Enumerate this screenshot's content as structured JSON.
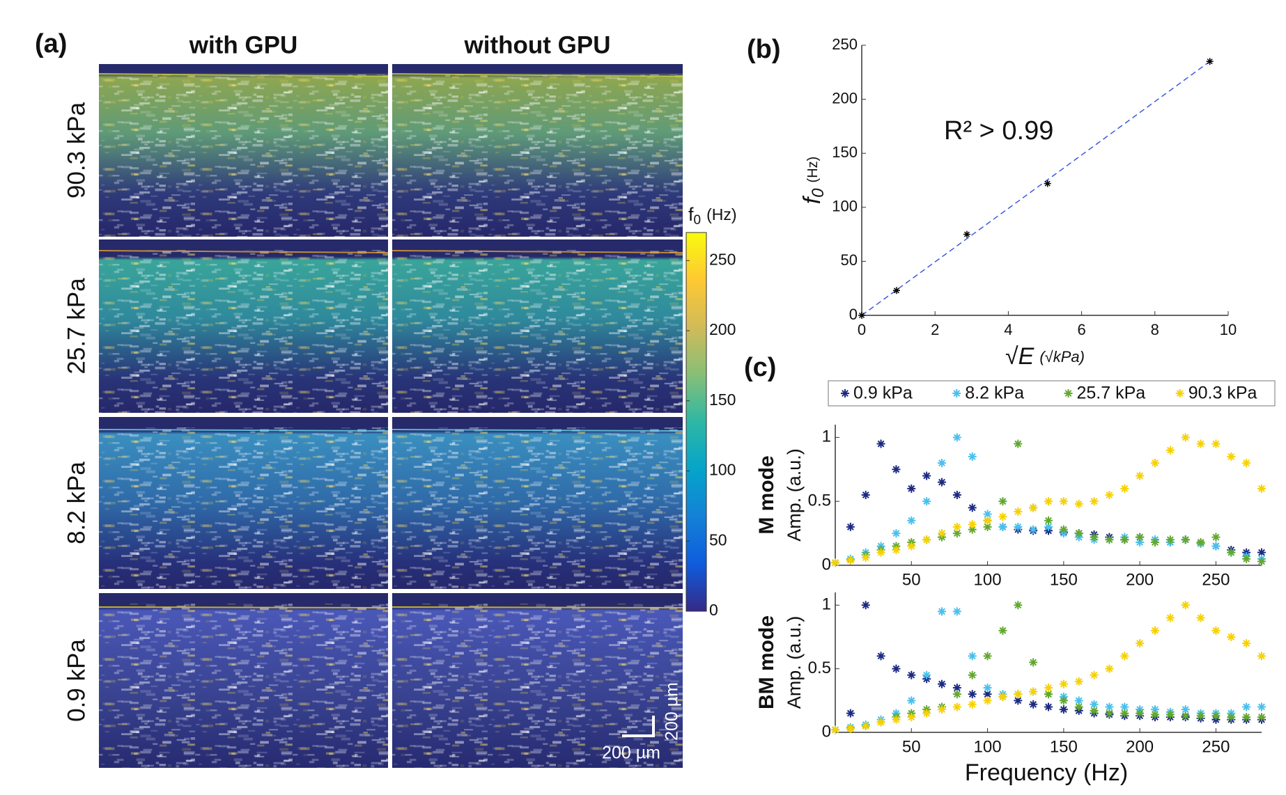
{
  "chart_data": [
    {
      "type": "heatmap",
      "panel_label": "(a)",
      "columns": [
        "with GPU",
        "without GPU"
      ],
      "rows": [
        "90.3 kPa",
        "25.7 kPa",
        "8.2 kPa",
        "0.9 kPa"
      ],
      "colorbar_label": "f",
      "colorbar_label_sub": "0",
      "colorbar_unit": "(Hz)",
      "clim": [
        0,
        270
      ],
      "cticks": [
        0,
        50,
        100,
        150,
        200,
        250
      ],
      "colormap": [
        "#352a87",
        "#0f5cdd",
        "#1481d6",
        "#06a4ca",
        "#2eb7a4",
        "#87bf77",
        "#d1bb59",
        "#fec832",
        "#f9fb0e"
      ],
      "scale_bar_x": "200 µm",
      "scale_bar_y": "200 µm"
    },
    {
      "type": "scatter",
      "panel_label": "(b)",
      "annotation": "R² > 0.99",
      "xlabel": "√E",
      "xlabel_unit": "(√kPa)",
      "ylabel": "f",
      "ylabel_sub": "0",
      "ylabel_unit": "(Hz)",
      "x": [
        0,
        0.95,
        2.87,
        5.07,
        9.5
      ],
      "series": [
        {
          "color": "#000000",
          "values": [
            0,
            23,
            75,
            122,
            235
          ]
        }
      ],
      "fit": {
        "color": "#3b5bdb",
        "x": [
          0,
          9.5
        ],
        "y": [
          0,
          235
        ]
      },
      "xlim": [
        0,
        10
      ],
      "ylim": [
        0,
        250
      ],
      "xticks": [
        0,
        2,
        4,
        6,
        8,
        10
      ],
      "yticks": [
        0,
        50,
        100,
        150,
        200,
        250
      ]
    },
    {
      "type": "scatter",
      "panel_label": "(c)",
      "row_title": "M mode",
      "ylabel": "Amp. (a.u.)",
      "legend": true,
      "x": [
        0,
        10,
        20,
        30,
        40,
        50,
        60,
        70,
        80,
        90,
        100,
        110,
        120,
        130,
        140,
        150,
        160,
        170,
        180,
        190,
        200,
        210,
        220,
        230,
        240,
        250,
        260,
        270,
        280
      ],
      "series": [
        {
          "name": "0.9 kPa",
          "color": "#1b2a83",
          "values": [
            0.02,
            0.3,
            0.55,
            0.95,
            0.75,
            0.6,
            0.7,
            0.65,
            0.55,
            0.45,
            0.35,
            0.3,
            0.28,
            0.27,
            0.27,
            0.26,
            0.25,
            0.24,
            0.22,
            0.2,
            0.22,
            0.2,
            0.18,
            0.2,
            0.17,
            0.15,
            0.12,
            0.1,
            0.1
          ]
        },
        {
          "name": "8.2 kPa",
          "color": "#49c0ee",
          "values": [
            0.02,
            0.05,
            0.1,
            0.15,
            0.25,
            0.35,
            0.5,
            0.8,
            1.0,
            0.85,
            0.4,
            0.3,
            0.3,
            0.28,
            0.3,
            0.25,
            0.22,
            0.2,
            0.2,
            0.22,
            0.18,
            0.2,
            0.18,
            0.2,
            0.17,
            0.15,
            0.1,
            0.07,
            0.05
          ]
        },
        {
          "name": "25.7 kPa",
          "color": "#62a82f",
          "values": [
            0.02,
            0.04,
            0.08,
            0.12,
            0.15,
            0.18,
            0.2,
            0.22,
            0.25,
            0.28,
            0.3,
            0.5,
            0.95,
            0.45,
            0.35,
            0.28,
            0.25,
            0.22,
            0.2,
            0.2,
            0.22,
            0.18,
            0.2,
            0.2,
            0.18,
            0.22,
            0.1,
            0.05,
            0.03
          ]
        },
        {
          "name": "90.3 kPa",
          "color": "#f7d100",
          "values": [
            0.02,
            0.04,
            0.06,
            0.1,
            0.12,
            0.15,
            0.2,
            0.25,
            0.3,
            0.32,
            0.35,
            0.38,
            0.42,
            0.45,
            0.5,
            0.5,
            0.48,
            0.5,
            0.55,
            0.6,
            0.7,
            0.8,
            0.9,
            1.0,
            0.95,
            0.95,
            0.85,
            0.8,
            0.6
          ]
        }
      ],
      "xlim": [
        0,
        280
      ],
      "ylim": [
        0,
        1.1
      ],
      "xticks": [
        50,
        100,
        150,
        200,
        250
      ],
      "yticks": [
        0,
        0.5,
        1
      ]
    },
    {
      "type": "scatter",
      "row_title": "BM mode",
      "ylabel": "Amp. (a.u.)",
      "xlabel": "Frequency (Hz)",
      "x": [
        0,
        10,
        20,
        30,
        40,
        50,
        60,
        70,
        80,
        90,
        100,
        110,
        120,
        130,
        140,
        150,
        160,
        170,
        180,
        190,
        200,
        210,
        220,
        230,
        240,
        250,
        260,
        270,
        280
      ],
      "series": [
        {
          "color": "#1b2a83",
          "values": [
            0.02,
            0.15,
            1.0,
            0.6,
            0.5,
            0.45,
            0.42,
            0.38,
            0.35,
            0.3,
            0.3,
            0.28,
            0.25,
            0.22,
            0.2,
            0.18,
            0.17,
            0.15,
            0.14,
            0.13,
            0.13,
            0.12,
            0.12,
            0.12,
            0.11,
            0.1,
            0.1,
            0.1,
            0.1
          ]
        },
        {
          "color": "#49c0ee",
          "values": [
            0.02,
            0.04,
            0.06,
            0.1,
            0.15,
            0.25,
            0.45,
            0.95,
            0.95,
            0.6,
            0.35,
            0.3,
            0.3,
            0.32,
            0.3,
            0.28,
            0.25,
            0.22,
            0.2,
            0.2,
            0.18,
            0.18,
            0.16,
            0.18,
            0.15,
            0.15,
            0.15,
            0.2,
            0.2
          ]
        },
        {
          "color": "#62a82f",
          "values": [
            0.02,
            0.03,
            0.05,
            0.08,
            0.12,
            0.15,
            0.18,
            0.2,
            0.3,
            0.45,
            0.6,
            0.8,
            1.0,
            0.55,
            0.3,
            0.25,
            0.2,
            0.17,
            0.15,
            0.15,
            0.15,
            0.14,
            0.14,
            0.13,
            0.13,
            0.13,
            0.12,
            0.12,
            0.12
          ]
        },
        {
          "color": "#f7d100",
          "values": [
            0.02,
            0.03,
            0.05,
            0.08,
            0.1,
            0.12,
            0.15,
            0.18,
            0.2,
            0.22,
            0.25,
            0.28,
            0.3,
            0.32,
            0.35,
            0.38,
            0.4,
            0.45,
            0.5,
            0.6,
            0.7,
            0.8,
            0.9,
            1.0,
            0.9,
            0.8,
            0.75,
            0.7,
            0.6
          ]
        }
      ],
      "xlim": [
        0,
        280
      ],
      "ylim": [
        0,
        1.1
      ],
      "xticks": [
        50,
        100,
        150,
        200,
        250
      ],
      "yticks": [
        0,
        0.5,
        1
      ]
    }
  ]
}
